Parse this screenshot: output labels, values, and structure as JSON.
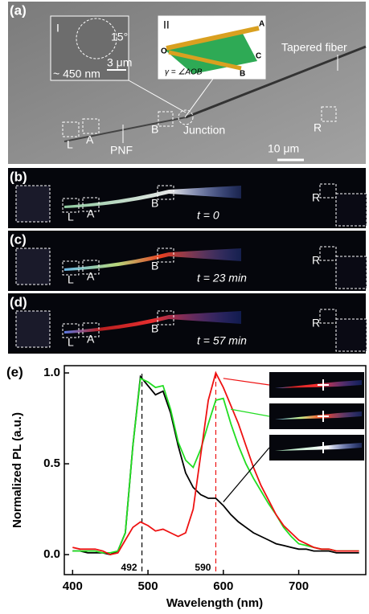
{
  "panels": {
    "a": {
      "label": "(a)",
      "inset1": {
        "label": "I",
        "angle": "15°",
        "width": "~ 450 nm",
        "scale": "3 μm"
      },
      "inset2": {
        "label": "II",
        "points": [
          "O",
          "A",
          "B",
          "C"
        ],
        "formula": "γ = ∠AOB"
      },
      "tapered": "Tapered fiber",
      "junction": "Junction",
      "pnf": "PNF",
      "marks": [
        "L",
        "A",
        "B",
        "R"
      ],
      "scale": "10 μm"
    },
    "b": {
      "label": "(b)",
      "marks": [
        "L",
        "A",
        "B",
        "R"
      ],
      "time": "t = 0"
    },
    "c": {
      "label": "(c)",
      "marks": [
        "L",
        "A",
        "B",
        "R"
      ],
      "time": "t = 23 min"
    },
    "d": {
      "label": "(d)",
      "marks": [
        "L",
        "A",
        "B",
        "R"
      ],
      "time": "t = 57 min"
    }
  },
  "chart_data": {
    "type": "line",
    "label": "(e)",
    "xlabel": "Wavelength (nm)",
    "ylabel": "Normalized PL (a.u.)",
    "x": [
      400,
      410,
      420,
      430,
      440,
      450,
      460,
      470,
      480,
      490,
      500,
      510,
      520,
      530,
      540,
      550,
      560,
      570,
      580,
      590,
      600,
      610,
      620,
      630,
      640,
      650,
      660,
      670,
      680,
      690,
      700,
      710,
      720,
      730,
      740,
      750,
      760,
      770,
      780
    ],
    "series": [
      {
        "color": "#000000",
        "values": [
          0.02,
          0.02,
          0.01,
          0.01,
          0.01,
          0.0,
          0.02,
          0.12,
          0.6,
          0.98,
          0.93,
          0.88,
          0.9,
          0.78,
          0.6,
          0.45,
          0.37,
          0.33,
          0.31,
          0.31,
          0.27,
          0.22,
          0.18,
          0.15,
          0.12,
          0.1,
          0.08,
          0.06,
          0.05,
          0.04,
          0.03,
          0.03,
          0.02,
          0.02,
          0.02,
          0.01,
          0.01,
          0.01,
          0.01
        ]
      },
      {
        "color": "#22dd22",
        "values": [
          0.02,
          0.02,
          0.02,
          0.02,
          0.01,
          0.01,
          0.02,
          0.12,
          0.6,
          0.97,
          0.95,
          0.92,
          0.93,
          0.8,
          0.62,
          0.52,
          0.48,
          0.58,
          0.72,
          0.85,
          0.86,
          0.72,
          0.6,
          0.5,
          0.42,
          0.35,
          0.28,
          0.22,
          0.15,
          0.1,
          0.06,
          0.05,
          0.04,
          0.03,
          0.03,
          0.02,
          0.02,
          0.02,
          0.02
        ]
      },
      {
        "color": "#ee1111",
        "values": [
          0.04,
          0.03,
          0.03,
          0.03,
          0.02,
          0.0,
          0.01,
          0.08,
          0.15,
          0.18,
          0.16,
          0.13,
          0.14,
          0.12,
          0.1,
          0.12,
          0.25,
          0.55,
          0.85,
          1.0,
          0.92,
          0.82,
          0.72,
          0.6,
          0.48,
          0.38,
          0.3,
          0.22,
          0.16,
          0.12,
          0.08,
          0.06,
          0.04,
          0.03,
          0.03,
          0.02,
          0.02,
          0.02,
          0.02
        ]
      }
    ],
    "vlines": [
      {
        "x": 492,
        "color": "#000000"
      },
      {
        "x": 590,
        "color": "#ee1111"
      }
    ],
    "xlim": [
      389,
      789
    ],
    "ylim": [
      -0.11,
      1.04
    ],
    "xticks": [
      400,
      500,
      600,
      700
    ],
    "yticks": [
      {
        "value": 0,
        "label": "0.0"
      },
      {
        "value": 0.5,
        "label": "0.5"
      },
      {
        "value": 1,
        "label": "1.0"
      }
    ]
  }
}
